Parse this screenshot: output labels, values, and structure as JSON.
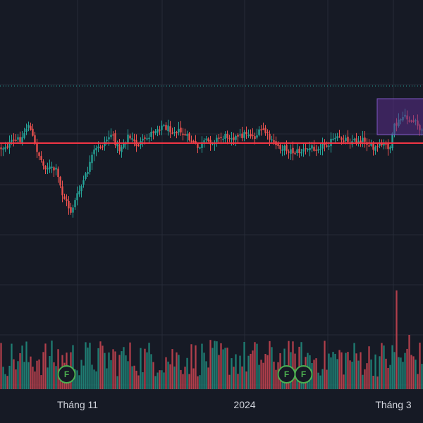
{
  "colors": {
    "background": "#161a25",
    "grid": "#262b38",
    "up": "#26a69a",
    "down": "#ef5350",
    "up_volume": "#1f7d73",
    "down_volume": "#b13f4b",
    "hline": "#f23645",
    "dotted_line": "#26a69a",
    "highlight_fill": "#5b2d8a",
    "highlight_stroke": "#7e57c2",
    "flag": "#4caf50"
  },
  "x_axis": {
    "labels": [
      "Tháng 11",
      "2024",
      "Tháng 3"
    ]
  },
  "flags": [
    {
      "label": "F",
      "bar_index": 31
    },
    {
      "label": "F",
      "bar_index": 135
    },
    {
      "label": "F",
      "bar_index": 143
    }
  ],
  "chart_data": {
    "type": "candlestick",
    "price_levels": {
      "horizontal_line": 203,
      "dotted_line": 122
    },
    "candles": {
      "count": 200,
      "close_path": [
        [
          0,
          210
        ],
        [
          10,
          195
        ],
        [
          13,
          175
        ],
        [
          16,
          205
        ],
        [
          20,
          235
        ],
        [
          26,
          242
        ],
        [
          29,
          275
        ],
        [
          33,
          300
        ],
        [
          36,
          278
        ],
        [
          40,
          250
        ],
        [
          44,
          215
        ],
        [
          48,
          205
        ],
        [
          52,
          190
        ],
        [
          56,
          212
        ],
        [
          60,
          193
        ],
        [
          64,
          205
        ],
        [
          68,
          200
        ],
        [
          72,
          185
        ],
        [
          76,
          178
        ],
        [
          79,
          182
        ],
        [
          83,
          185
        ],
        [
          86,
          190
        ],
        [
          90,
          200
        ],
        [
          93,
          210
        ],
        [
          96,
          202
        ],
        [
          100,
          200
        ],
        [
          104,
          195
        ],
        [
          108,
          192
        ],
        [
          112,
          196
        ],
        [
          116,
          188
        ],
        [
          120,
          194
        ],
        [
          124,
          183
        ],
        [
          128,
          202
        ],
        [
          132,
          208
        ],
        [
          138,
          215
        ],
        [
          142,
          215
        ],
        [
          146,
          210
        ],
        [
          150,
          208
        ],
        [
          154,
          203
        ],
        [
          158,
          198
        ],
        [
          162,
          196
        ],
        [
          166,
          200
        ],
        [
          172,
          198
        ],
        [
          176,
          212
        ],
        [
          180,
          206
        ],
        [
          184,
          208
        ],
        [
          186,
          180
        ],
        [
          190,
          166
        ],
        [
          193,
          170
        ],
        [
          196,
          175
        ],
        [
          199,
          187
        ]
      ]
    },
    "volume": {
      "baseline_level": 100,
      "notable_bars": [
        {
          "index": 57,
          "level": 77
        },
        {
          "index": 137,
          "level": 75
        },
        {
          "index": 187,
          "level": 200
        },
        {
          "index": 193,
          "level": 110
        }
      ]
    }
  }
}
